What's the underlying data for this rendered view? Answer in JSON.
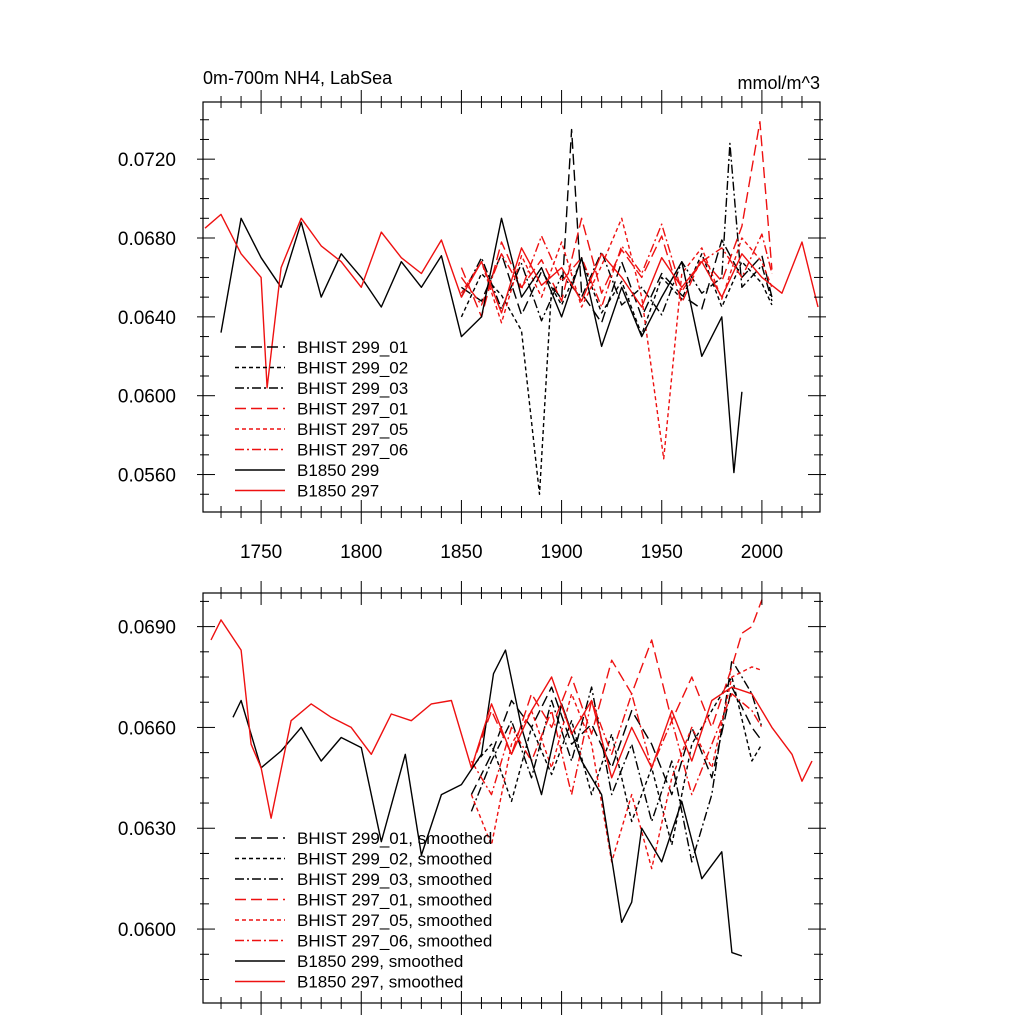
{
  "figure": {
    "description_colors": {
      "black": "#000000",
      "red": "#ee1111"
    }
  },
  "chart_data": [
    {
      "type": "line",
      "title": "0m-700m NH4, LabSea",
      "units": "mmol/m^3",
      "xlabel": "",
      "ylabel": "",
      "xlim": [
        1721,
        2029
      ],
      "ylim": [
        0.0541,
        0.0749
      ],
      "xticks": [
        1750,
        1800,
        1850,
        1900,
        1950,
        2000
      ],
      "xtick_labels": [
        "1750",
        "1800",
        "1850",
        "1900",
        "1950",
        "2000"
      ],
      "yticks": [
        0.056,
        0.06,
        0.064,
        0.068,
        0.072
      ],
      "ytick_labels": [
        "0.0560",
        "0.0600",
        "0.0640",
        "0.0680",
        "0.0720"
      ],
      "legend_position": "lower-left",
      "series": [
        {
          "name": "BHIST 299_01",
          "color": "#000000",
          "dash": "long-dash",
          "x": [
            1850,
            1860,
            1870,
            1880,
            1890,
            1900,
            1905,
            1910,
            1920,
            1930,
            1940,
            1950,
            1960,
            1970,
            1980,
            1990,
            2000,
            2005
          ],
          "y": [
            0.0655,
            0.0648,
            0.0672,
            0.0641,
            0.0663,
            0.0649,
            0.0735,
            0.0652,
            0.0637,
            0.0668,
            0.064,
            0.0662,
            0.0651,
            0.0644,
            0.0679,
            0.066,
            0.0671,
            0.065
          ]
        },
        {
          "name": "BHIST 299_02",
          "color": "#000000",
          "dash": "short-dash",
          "x": [
            1850,
            1860,
            1870,
            1880,
            1889,
            1895,
            1900,
            1910,
            1920,
            1930,
            1940,
            1950,
            1960,
            1970,
            1980,
            1990,
            2000,
            2005
          ],
          "y": [
            0.064,
            0.0662,
            0.0651,
            0.0633,
            0.055,
            0.0655,
            0.0646,
            0.0669,
            0.0642,
            0.0658,
            0.0631,
            0.066,
            0.0649,
            0.0672,
            0.0645,
            0.0668,
            0.0657,
            0.0646
          ]
        },
        {
          "name": "BHIST 299_03",
          "color": "#000000",
          "dash": "dash-dot",
          "x": [
            1850,
            1860,
            1870,
            1880,
            1890,
            1900,
            1910,
            1920,
            1930,
            1940,
            1950,
            1960,
            1970,
            1980,
            1984,
            1990,
            2000,
            2005
          ],
          "y": [
            0.065,
            0.067,
            0.0644,
            0.0667,
            0.0638,
            0.0661,
            0.065,
            0.0673,
            0.0646,
            0.0655,
            0.0641,
            0.0668,
            0.0652,
            0.066,
            0.0728,
            0.0655,
            0.0666,
            0.0648
          ]
        },
        {
          "name": "BHIST 297_01",
          "color": "#ee1111",
          "dash": "long-dash",
          "x": [
            1850,
            1860,
            1870,
            1880,
            1890,
            1900,
            1910,
            1920,
            1930,
            1940,
            1950,
            1960,
            1970,
            1980,
            1990,
            1999,
            2005
          ],
          "y": [
            0.0665,
            0.064,
            0.0678,
            0.0655,
            0.0669,
            0.0648,
            0.069,
            0.0652,
            0.0674,
            0.066,
            0.0681,
            0.0647,
            0.067,
            0.0658,
            0.0686,
            0.0739,
            0.0664
          ]
        },
        {
          "name": "BHIST 297_05",
          "color": "#ee1111",
          "dash": "short-dash",
          "x": [
            1850,
            1860,
            1870,
            1880,
            1890,
            1900,
            1910,
            1920,
            1930,
            1940,
            1951,
            1960,
            1970,
            1980,
            1990,
            2000,
            2005
          ],
          "y": [
            0.0652,
            0.0668,
            0.0637,
            0.0671,
            0.065,
            0.0678,
            0.0645,
            0.0666,
            0.069,
            0.065,
            0.0568,
            0.0662,
            0.0675,
            0.0649,
            0.068,
            0.0668,
            0.0655
          ]
        },
        {
          "name": "BHIST 297_06",
          "color": "#ee1111",
          "dash": "dash-dot",
          "x": [
            1850,
            1860,
            1870,
            1880,
            1890,
            1900,
            1910,
            1920,
            1930,
            1940,
            1950,
            1960,
            1970,
            1980,
            1990,
            2000,
            2005
          ],
          "y": [
            0.066,
            0.0646,
            0.0672,
            0.0654,
            0.0681,
            0.0658,
            0.067,
            0.0645,
            0.0676,
            0.0662,
            0.0687,
            0.0653,
            0.0668,
            0.0675,
            0.066,
            0.0682,
            0.0662
          ]
        },
        {
          "name": "B1850 299",
          "color": "#000000",
          "dash": "solid",
          "x": [
            1730,
            1740,
            1750,
            1760,
            1770,
            1780,
            1790,
            1800,
            1810,
            1820,
            1830,
            1840,
            1850,
            1860,
            1870,
            1880,
            1890,
            1900,
            1910,
            1920,
            1930,
            1940,
            1950,
            1960,
            1970,
            1980,
            1986,
            1990
          ],
          "y": [
            0.0632,
            0.069,
            0.067,
            0.0655,
            0.0688,
            0.065,
            0.0672,
            0.066,
            0.0645,
            0.0668,
            0.0655,
            0.0671,
            0.063,
            0.064,
            0.069,
            0.065,
            0.0665,
            0.064,
            0.067,
            0.0625,
            0.0655,
            0.063,
            0.065,
            0.0668,
            0.062,
            0.064,
            0.0561,
            0.0602
          ]
        },
        {
          "name": "B1850 297",
          "color": "#ee1111",
          "dash": "solid",
          "x": [
            1722,
            1730,
            1740,
            1750,
            1753,
            1760,
            1770,
            1780,
            1790,
            1800,
            1810,
            1820,
            1830,
            1840,
            1850,
            1860,
            1870,
            1880,
            1890,
            1900,
            1910,
            1920,
            1930,
            1940,
            1950,
            1960,
            1970,
            1980,
            1990,
            2000,
            2010,
            2020,
            2028
          ],
          "y": [
            0.0685,
            0.0692,
            0.0672,
            0.066,
            0.0604,
            0.0665,
            0.069,
            0.0676,
            0.0668,
            0.0655,
            0.0683,
            0.067,
            0.0662,
            0.0679,
            0.065,
            0.0668,
            0.0642,
            0.0675,
            0.0656,
            0.0665,
            0.0648,
            0.0672,
            0.066,
            0.0645,
            0.067,
            0.0655,
            0.0668,
            0.065,
            0.0672,
            0.066,
            0.0652,
            0.0678,
            0.0645
          ]
        }
      ]
    },
    {
      "type": "line",
      "title": "",
      "xlabel": "",
      "ylabel": "",
      "xlim": [
        1721,
        2029
      ],
      "ylim": [
        0.0578,
        0.07
      ],
      "xticks": [
        1750,
        1800,
        1850,
        1900,
        1950,
        2000
      ],
      "xtick_labels": [],
      "yticks": [
        0.06,
        0.063,
        0.066,
        0.069
      ],
      "ytick_labels": [
        "0.0600",
        "0.0630",
        "0.0660",
        "0.0690"
      ],
      "legend_position": "lower-left",
      "series": [
        {
          "name": "BHIST 299_01, smoothed",
          "color": "#000000",
          "dash": "long-dash",
          "x": [
            1855,
            1865,
            1875,
            1885,
            1895,
            1905,
            1915,
            1925,
            1935,
            1945,
            1955,
            1965,
            1975,
            1985,
            1995,
            2000
          ],
          "y": [
            0.064,
            0.0652,
            0.0668,
            0.066,
            0.0672,
            0.0655,
            0.0661,
            0.0648,
            0.0665,
            0.0655,
            0.064,
            0.066,
            0.0645,
            0.0672,
            0.066,
            0.0656
          ]
        },
        {
          "name": "BHIST 299_02, smoothed",
          "color": "#000000",
          "dash": "short-dash",
          "x": [
            1855,
            1865,
            1875,
            1885,
            1895,
            1905,
            1915,
            1925,
            1935,
            1945,
            1955,
            1965,
            1975,
            1985,
            1995,
            2000
          ],
          "y": [
            0.0648,
            0.0655,
            0.0638,
            0.066,
            0.0646,
            0.0662,
            0.064,
            0.0658,
            0.0632,
            0.0648,
            0.0625,
            0.0655,
            0.0665,
            0.0675,
            0.065,
            0.0655
          ]
        },
        {
          "name": "BHIST 299_03, smoothed",
          "color": "#000000",
          "dash": "dash-dot",
          "x": [
            1855,
            1865,
            1875,
            1885,
            1895,
            1905,
            1915,
            1925,
            1935,
            1945,
            1955,
            1965,
            1975,
            1985,
            1995,
            2000
          ],
          "y": [
            0.0635,
            0.065,
            0.0662,
            0.0645,
            0.0668,
            0.065,
            0.0672,
            0.064,
            0.0655,
            0.0632,
            0.065,
            0.062,
            0.064,
            0.068,
            0.067,
            0.066
          ]
        },
        {
          "name": "BHIST 297_01, smoothed",
          "color": "#ee1111",
          "dash": "long-dash",
          "x": [
            1855,
            1865,
            1875,
            1885,
            1895,
            1905,
            1915,
            1925,
            1935,
            1945,
            1955,
            1965,
            1975,
            1985,
            1990,
            1995,
            2000
          ],
          "y": [
            0.0648,
            0.0665,
            0.0652,
            0.067,
            0.066,
            0.0675,
            0.0658,
            0.068,
            0.067,
            0.0686,
            0.0662,
            0.0675,
            0.066,
            0.0678,
            0.0688,
            0.069,
            0.0698
          ]
        },
        {
          "name": "BHIST 297_05, smoothed",
          "color": "#ee1111",
          "dash": "short-dash",
          "x": [
            1855,
            1865,
            1875,
            1885,
            1895,
            1905,
            1915,
            1925,
            1935,
            1945,
            1955,
            1965,
            1975,
            1985,
            1995,
            2000
          ],
          "y": [
            0.064,
            0.0625,
            0.0655,
            0.0665,
            0.0648,
            0.067,
            0.0655,
            0.062,
            0.064,
            0.0618,
            0.0645,
            0.066,
            0.0648,
            0.0675,
            0.0678,
            0.0677
          ]
        },
        {
          "name": "BHIST 297_06, smoothed",
          "color": "#ee1111",
          "dash": "dash-dot",
          "x": [
            1855,
            1865,
            1875,
            1885,
            1895,
            1905,
            1915,
            1925,
            1935,
            1945,
            1955,
            1965,
            1975,
            1985,
            1995,
            2000
          ],
          "y": [
            0.065,
            0.064,
            0.066,
            0.065,
            0.0665,
            0.064,
            0.0668,
            0.0652,
            0.067,
            0.0648,
            0.0662,
            0.064,
            0.0655,
            0.067,
            0.0665,
            0.066
          ]
        },
        {
          "name": "B1850 299, smoothed",
          "color": "#000000",
          "dash": "solid",
          "x": [
            1736,
            1740,
            1750,
            1760,
            1770,
            1780,
            1790,
            1800,
            1810,
            1822,
            1830,
            1840,
            1850,
            1860,
            1866,
            1872,
            1880,
            1890,
            1900,
            1910,
            1920,
            1930,
            1935,
            1940,
            1950,
            1960,
            1970,
            1980,
            1985,
            1990
          ],
          "y": [
            0.0663,
            0.0668,
            0.0648,
            0.0653,
            0.066,
            0.065,
            0.0657,
            0.0654,
            0.0626,
            0.0652,
            0.0622,
            0.064,
            0.0643,
            0.0652,
            0.0676,
            0.0683,
            0.066,
            0.064,
            0.0667,
            0.065,
            0.064,
            0.0602,
            0.0608,
            0.063,
            0.062,
            0.0638,
            0.0615,
            0.0623,
            0.0593,
            0.0592
          ]
        },
        {
          "name": "B1850 297, smoothed",
          "color": "#ee1111",
          "dash": "solid",
          "x": [
            1725,
            1730,
            1740,
            1745,
            1750,
            1755,
            1765,
            1775,
            1785,
            1795,
            1805,
            1815,
            1825,
            1835,
            1845,
            1855,
            1865,
            1875,
            1885,
            1895,
            1905,
            1915,
            1925,
            1935,
            1945,
            1955,
            1965,
            1975,
            1985,
            1995,
            2005,
            2015,
            2020,
            2025
          ],
          "y": [
            0.0686,
            0.0692,
            0.0683,
            0.0655,
            0.0648,
            0.0633,
            0.0662,
            0.0667,
            0.0663,
            0.066,
            0.0652,
            0.0664,
            0.0662,
            0.0667,
            0.0668,
            0.0648,
            0.0667,
            0.0652,
            0.0665,
            0.0675,
            0.0658,
            0.0668,
            0.0645,
            0.066,
            0.0648,
            0.0665,
            0.065,
            0.0668,
            0.0672,
            0.067,
            0.066,
            0.0652,
            0.0644,
            0.065
          ]
        }
      ]
    }
  ]
}
